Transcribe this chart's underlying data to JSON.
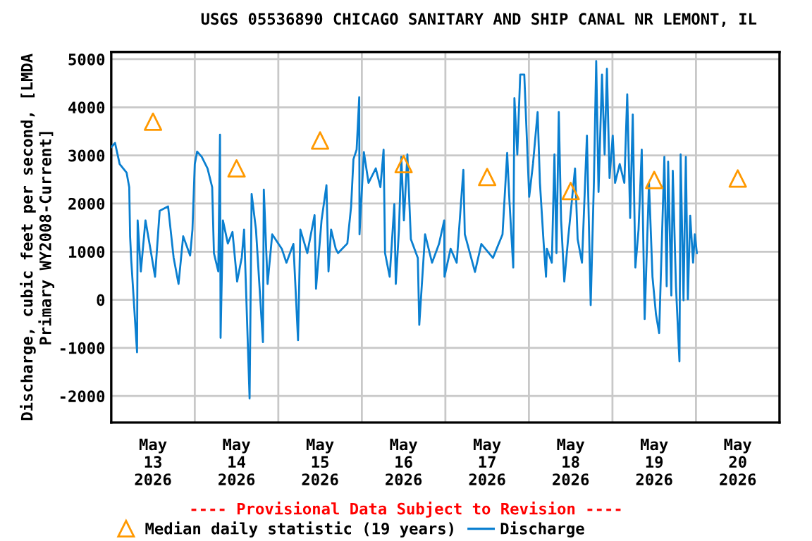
{
  "chart_data": {
    "type": "line",
    "title": "USGS 05536890 CHICAGO SANITARY AND SHIP CANAL NR LEMONT, IL",
    "ylabel": "Discharge, cubic feet per second, [LMDA\nPrimary WY2008-Current]",
    "annotations": [
      "---- Provisional Data Subject to Revision ----"
    ],
    "xlim": [
      "2026-05-13T00:00",
      "2026-05-21T00:00"
    ],
    "xticks": [
      {
        "value": "2026-05-13T12:00",
        "label": "May\n13\n2026"
      },
      {
        "value": "2026-05-14T12:00",
        "label": "May\n14\n2026"
      },
      {
        "value": "2026-05-15T12:00",
        "label": "May\n15\n2026"
      },
      {
        "value": "2026-05-16T12:00",
        "label": "May\n16\n2026"
      },
      {
        "value": "2026-05-17T12:00",
        "label": "May\n17\n2026"
      },
      {
        "value": "2026-05-18T12:00",
        "label": "May\n18\n2026"
      },
      {
        "value": "2026-05-19T12:00",
        "label": "May\n19\n2026"
      },
      {
        "value": "2026-05-20T12:00",
        "label": "May\n20\n2026"
      },
      {
        "value": "2026-05-14T00:00",
        "label": null
      },
      {
        "value": "2026-05-15T00:00",
        "label": null
      },
      {
        "value": "2026-05-16T00:00",
        "label": null
      },
      {
        "value": "2026-05-17T00:00",
        "label": null
      },
      {
        "value": "2026-05-18T00:00",
        "label": null
      },
      {
        "value": "2026-05-19T00:00",
        "label": null
      },
      {
        "value": "2026-05-20T00:00",
        "label": null
      }
    ],
    "ylim": [
      -2550,
      5150
    ],
    "yticks": [
      -2000,
      -1000,
      0,
      1000,
      2000,
      3000,
      4000,
      5000
    ],
    "grid": true,
    "legend": "bottom",
    "series": [
      {
        "name": "Median daily statistic (19 years)",
        "type": "scatter",
        "marker": "triangle",
        "color": "#ff9900",
        "x": [
          "2026-05-13T12:00",
          "2026-05-14T12:00",
          "2026-05-15T12:00",
          "2026-05-16T12:00",
          "2026-05-17T12:00",
          "2026-05-18T12:00",
          "2026-05-19T12:00",
          "2026-05-20T12:00"
        ],
        "values": [
          3700,
          2730,
          3310,
          2820,
          2550,
          2260,
          2490,
          2520
        ]
      },
      {
        "name": "Discharge",
        "color": "#0a7fd0",
        "x": [
          "2026-05-13T00:00",
          "2026-05-13T01:05",
          "2026-05-13T02:25",
          "2026-05-13T04:25",
          "2026-05-13T05:10",
          "2026-05-13T05:25",
          "2026-05-13T05:45",
          "2026-05-13T07:25",
          "2026-05-13T07:35",
          "2026-05-13T08:30",
          "2026-05-13T09:50",
          "2026-05-13T11:15",
          "2026-05-13T12:35",
          "2026-05-13T13:55",
          "2026-05-13T16:20",
          "2026-05-13T17:55",
          "2026-05-13T19:20",
          "2026-05-13T20:40",
          "2026-05-13T22:40",
          "2026-05-13T23:20",
          "2026-05-14T00:00",
          "2026-05-14T00:40",
          "2026-05-14T02:00",
          "2026-05-14T03:40",
          "2026-05-14T05:00",
          "2026-05-14T05:30",
          "2026-05-14T06:45",
          "2026-05-14T07:15",
          "2026-05-14T07:25",
          "2026-05-14T08:05",
          "2026-05-14T09:30",
          "2026-05-14T10:50",
          "2026-05-14T12:10",
          "2026-05-14T13:30",
          "2026-05-14T14:10",
          "2026-05-14T15:45",
          "2026-05-14T16:20",
          "2026-05-14T17:35",
          "2026-05-14T19:35",
          "2026-05-14T19:50",
          "2026-05-14T20:55",
          "2026-05-14T22:15",
          "2026-05-15T01:00",
          "2026-05-15T02:20",
          "2026-05-15T04:20",
          "2026-05-15T05:40",
          "2026-05-15T06:20",
          "2026-05-15T08:20",
          "2026-05-15T10:25",
          "2026-05-15T10:50",
          "2026-05-15T12:25",
          "2026-05-15T13:50",
          "2026-05-15T14:25",
          "2026-05-15T15:10",
          "2026-05-15T16:30",
          "2026-05-15T17:10",
          "2026-05-15T19:50",
          "2026-05-15T20:55",
          "2026-05-15T21:35",
          "2026-05-15T22:30",
          "2026-05-15T23:15",
          "2026-05-15T23:20",
          "2026-05-16T00:35",
          "2026-05-16T01:55",
          "2026-05-16T04:00",
          "2026-05-16T05:20",
          "2026-05-16T06:15",
          "2026-05-16T06:40",
          "2026-05-16T08:00",
          "2026-05-16T09:20",
          "2026-05-16T09:45",
          "2026-05-16T10:40",
          "2026-05-16T11:20",
          "2026-05-16T12:05",
          "2026-05-16T13:05",
          "2026-05-16T14:05",
          "2026-05-16T16:05",
          "2026-05-16T16:30",
          "2026-05-16T18:10",
          "2026-05-16T20:10",
          "2026-05-16T22:10",
          "2026-05-16T23:40",
          "2026-05-16T23:45",
          "2026-05-17T01:30",
          "2026-05-17T03:15",
          "2026-05-17T05:10",
          "2026-05-17T05:35",
          "2026-05-17T08:30",
          "2026-05-17T10:20",
          "2026-05-17T13:40",
          "2026-05-17T16:25",
          "2026-05-17T17:45",
          "2026-05-17T18:25",
          "2026-05-17T19:30",
          "2026-05-17T19:50",
          "2026-05-17T20:40",
          "2026-05-17T21:30",
          "2026-05-17T22:40",
          "2026-05-18T00:05",
          "2026-05-18T01:10",
          "2026-05-18T02:30",
          "2026-05-18T03:10",
          "2026-05-18T04:15",
          "2026-05-18T04:55",
          "2026-05-18T05:10",
          "2026-05-18T06:35",
          "2026-05-18T07:20",
          "2026-05-18T07:55",
          "2026-05-18T08:35",
          "2026-05-18T09:15",
          "2026-05-18T10:10",
          "2026-05-18T11:15",
          "2026-05-18T13:15",
          "2026-05-18T14:00",
          "2026-05-18T15:15",
          "2026-05-18T16:40",
          "2026-05-18T17:45",
          "2026-05-18T18:40",
          "2026-05-18T19:20",
          "2026-05-18T20:00",
          "2026-05-18T21:00",
          "2026-05-18T21:45",
          "2026-05-18T22:25",
          "2026-05-18T23:10",
          "2026-05-19T00:05",
          "2026-05-19T00:45",
          "2026-05-19T02:05",
          "2026-05-19T03:25",
          "2026-05-19T04:15",
          "2026-05-19T05:05",
          "2026-05-19T05:50",
          "2026-05-19T06:35",
          "2026-05-19T07:30",
          "2026-05-19T08:25",
          "2026-05-19T09:15",
          "2026-05-19T10:30",
          "2026-05-19T11:30",
          "2026-05-19T12:30",
          "2026-05-19T13:25",
          "2026-05-19T14:55",
          "2026-05-19T15:35",
          "2026-05-19T16:00",
          "2026-05-19T16:55",
          "2026-05-19T17:20",
          "2026-05-19T18:15",
          "2026-05-19T19:15",
          "2026-05-19T19:35",
          "2026-05-19T20:25",
          "2026-05-19T21:05",
          "2026-05-19T21:40",
          "2026-05-19T22:20",
          "2026-05-19T23:10",
          "2026-05-19T23:40",
          "2026-05-20T00:15"
        ],
        "values": [
          3170,
          3260,
          2820,
          2640,
          2340,
          1320,
          820,
          -1090,
          1650,
          590,
          1650,
          1060,
          480,
          1850,
          1940,
          880,
          330,
          1320,
          920,
          1460,
          2820,
          3080,
          2970,
          2730,
          2340,
          970,
          590,
          3430,
          -790,
          1650,
          1170,
          1410,
          380,
          880,
          1460,
          -2050,
          2200,
          1460,
          -880,
          2290,
          330,
          1360,
          1060,
          770,
          1160,
          -840,
          1460,
          970,
          1760,
          230,
          1650,
          2380,
          590,
          1460,
          1060,
          970,
          1170,
          1940,
          2920,
          3120,
          4210,
          1360,
          3070,
          2430,
          2730,
          2340,
          3120,
          970,
          480,
          1990,
          330,
          1460,
          2970,
          1650,
          3020,
          1260,
          870,
          -520,
          1360,
          770,
          1160,
          1650,
          480,
          1060,
          770,
          2700,
          1360,
          580,
          1160,
          870,
          1360,
          3050,
          2040,
          670,
          4190,
          3020,
          4680,
          4680,
          2140,
          2820,
          3900,
          2430,
          1160,
          480,
          1060,
          770,
          3020,
          970,
          3900,
          1650,
          380,
          1260,
          2730,
          1260,
          770,
          3410,
          -110,
          2430,
          4960,
          2240,
          4680,
          3020,
          4800,
          2530,
          3410,
          2430,
          2820,
          2430,
          4270,
          1700,
          3850,
          670,
          1460,
          3120,
          -400,
          2430,
          480,
          -300,
          -690,
          2970,
          280,
          2870,
          90,
          2680,
          280,
          -1280,
          3020,
          -10,
          2970,
          10,
          1750,
          770,
          1360,
          970
        ]
      }
    ]
  }
}
